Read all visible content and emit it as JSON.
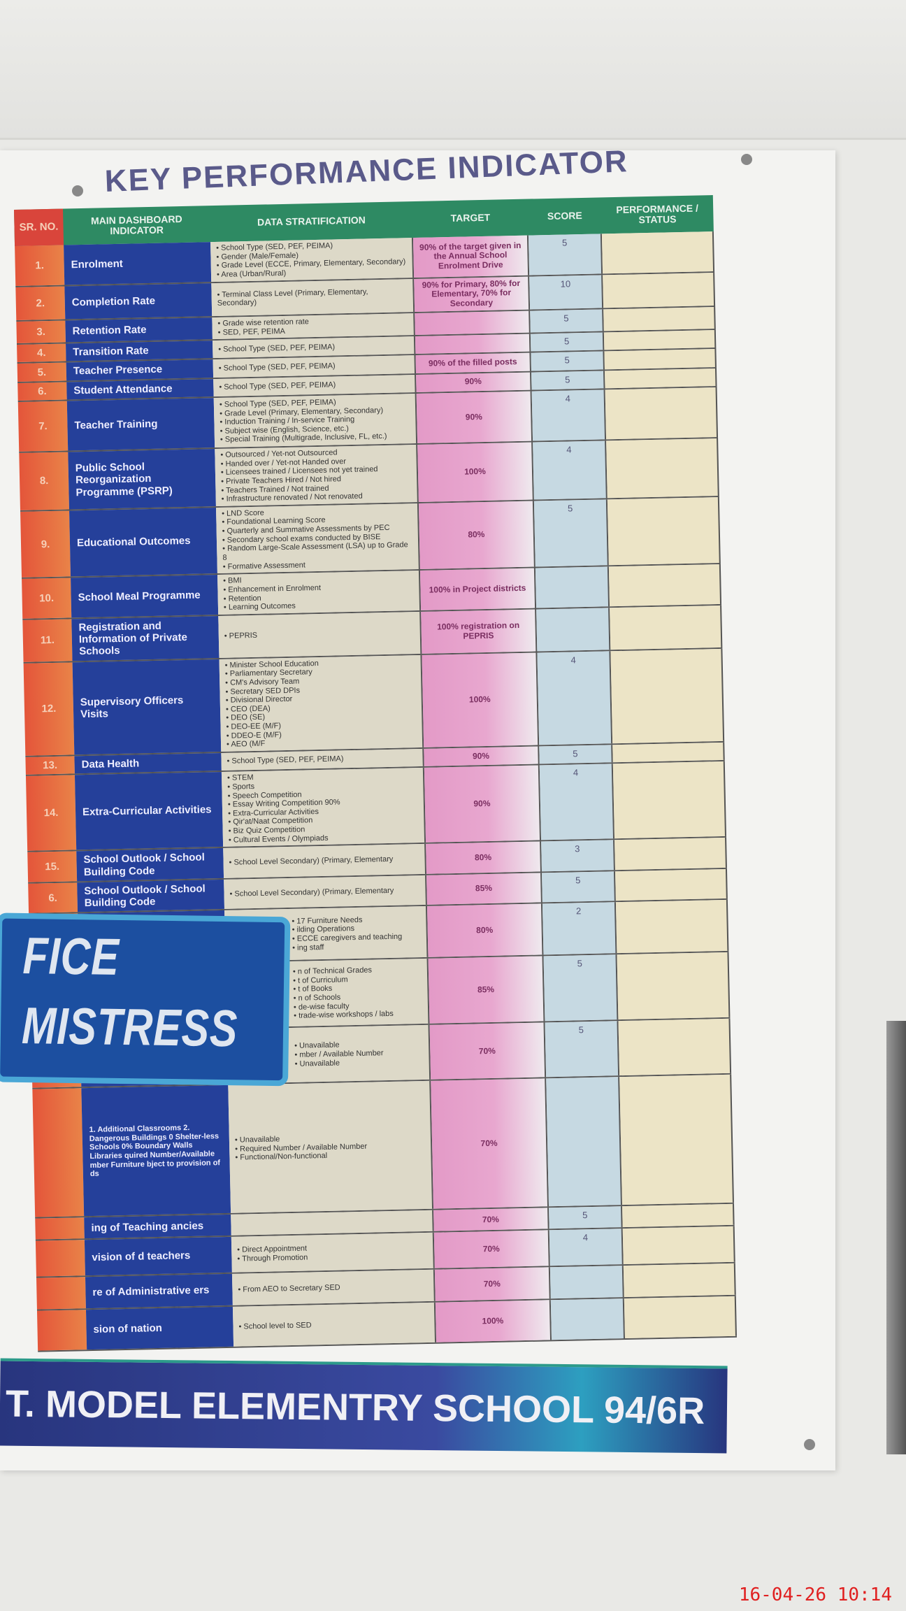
{
  "poster": {
    "title": "KEY PERFORMANCE INDICATOR",
    "footer": "T. MODEL ELEMENTRY SCHOOL 94/6R"
  },
  "headers": [
    "SR. NO.",
    "MAIN DASHBOARD INDICATOR",
    "DATA STRATIFICATION",
    "TARGET",
    "SCORE",
    "PERFORMANCE / STATUS"
  ],
  "rows": [
    {
      "sr": "1.",
      "indicator": "Enrolment",
      "strat": [
        "School Type (SED, PEF, PEIMA)",
        "Gender (Male/Female)",
        "Grade Level (ECCE, Primary, Elementary, Secondary)",
        "Area (Urban/Rural)"
      ],
      "target": "90% of the target given in the Annual School Enrolment Drive",
      "score": "5"
    },
    {
      "sr": "2.",
      "indicator": "Completion Rate",
      "strat": [
        "Terminal Class Level (Primary, Elementary, Secondary)"
      ],
      "target": "90% for Primary, 80% for Elementary, 70% for Secondary",
      "score": "10"
    },
    {
      "sr": "3.",
      "indicator": "Retention Rate",
      "strat": [
        "Grade wise retention rate",
        "SED, PEF, PEIMA"
      ],
      "target": "",
      "score": "5"
    },
    {
      "sr": "4.",
      "indicator": "Transition Rate",
      "strat": [
        "School Type (SED, PEF, PEIMA)"
      ],
      "target": "",
      "score": "5"
    },
    {
      "sr": "5.",
      "indicator": "Teacher Presence",
      "strat": [
        "School Type (SED, PEF, PEIMA)"
      ],
      "target": "90% of the filled posts",
      "score": "5"
    },
    {
      "sr": "6.",
      "indicator": "Student Attendance",
      "strat": [
        "School Type (SED, PEF, PEIMA)"
      ],
      "target": "90%",
      "score": "5"
    },
    {
      "sr": "7.",
      "indicator": "Teacher Training",
      "strat": [
        "School Type (SED, PEF, PEIMA)",
        "Grade Level (Primary, Elementary, Secondary)",
        "Induction Training / In-service Training",
        "Subject wise (English, Science, etc.)",
        "Special Training (Multigrade, Inclusive, FL, etc.)"
      ],
      "target": "90%",
      "score": "4"
    },
    {
      "sr": "8.",
      "indicator": "Public School Reorganization Programme (PSRP)",
      "strat": [
        "Outsourced / Yet-not Outsourced",
        "Handed over / Yet-not Handed over",
        "Licensees trained / Licensees not yet trained",
        "Private Teachers Hired / Not hired",
        "Teachers Trained / Not trained",
        "Infrastructure renovated / Not renovated"
      ],
      "target": "100%",
      "score": "4"
    },
    {
      "sr": "9.",
      "indicator": "Educational Outcomes",
      "strat": [
        "LND Score",
        "Foundational Learning Score",
        "Quarterly and Summative Assessments by PEC",
        "Secondary school exams conducted by BISE",
        "Random Large-Scale Assessment (LSA) up to Grade 8",
        "Formative Assessment"
      ],
      "target": "80%",
      "score": "5"
    },
    {
      "sr": "10.",
      "indicator": "School Meal Programme",
      "strat": [
        "BMI",
        "Enhancement in Enrolment",
        "Retention",
        "Learning Outcomes"
      ],
      "target": "100% in Project districts",
      "score": ""
    },
    {
      "sr": "11.",
      "indicator": "Registration and Information of Private Schools",
      "strat": [
        "PEPRIS"
      ],
      "target": "100% registration on PEPRIS",
      "score": ""
    },
    {
      "sr": "12.",
      "indicator": "Supervisory Officers Visits",
      "strat": [
        "Minister School Education",
        "Parliamentary Secretary",
        "CM's Advisory Team",
        "Secretary SED DPIs",
        "Divisional Director",
        "CEO (DEA)",
        "DEO (SE)",
        "DEO-EE (M/F)",
        "DDEO-E (M/F)",
        "AEO (M/F"
      ],
      "target": "100%",
      "score": "4"
    },
    {
      "sr": "13.",
      "indicator": "Data Health",
      "strat": [
        "School Type (SED, PEF, PEIMA)"
      ],
      "target": "90%",
      "score": "5"
    },
    {
      "sr": "14.",
      "indicator": "Extra-Curricular Activities",
      "strat": [
        "STEM",
        "Sports",
        "Speech Competition",
        "Essay Writing Competition 90%",
        "Extra-Curricular Activities",
        "Qir'at/Naat Competition",
        "Biz Quiz Competition",
        "Cultural Events / Olympiads"
      ],
      "target": "90%",
      "score": "4"
    },
    {
      "sr": "15.",
      "indicator": "School Outlook / School Building Code",
      "strat": [
        "School Level Secondary) (Primary, Elementary"
      ],
      "target": "80%",
      "score": "3"
    },
    {
      "sr": "6.",
      "indicator": "School Outlook / School Building Code",
      "strat": [
        "School Level Secondary) (Primary, Elementary"
      ],
      "target": "85%",
      "score": "5"
    },
    {
      "sr": "",
      "indicator": "",
      "strat": [
        "17 Furniture Needs",
        "ilding Operations",
        "ECCE caregivers and teaching",
        "ing staff"
      ],
      "target": "80%",
      "score": "2"
    },
    {
      "sr": "",
      "indicator": "",
      "strat": [
        "n of Technical Grades",
        "t of Curriculum",
        "t of Books",
        "n of Schools",
        "de-wise faculty",
        "trade-wise workshops / labs"
      ],
      "target": "85%",
      "score": "5"
    },
    {
      "sr": "",
      "indicator": "",
      "strat": [
        "Unavailable",
        "mber / Available Number",
        "Unavailable"
      ],
      "target": "70%",
      "score": "5"
    },
    {
      "sr": "",
      "indicator": "1. Additional Classrooms 2. Dangerous Buildings 0 Shelter-less Schools 0% Boundary Walls Libraries quired Number/Available mber Furniture bject to provision of ds",
      "strat": [
        "Unavailable",
        "Required Number / Available Number",
        "Functional/Non-functional"
      ],
      "target": "70%",
      "score": ""
    },
    {
      "sr": "",
      "indicator": "ing of Teaching ancies",
      "strat": [],
      "target": "70%",
      "score": "5"
    },
    {
      "sr": "",
      "indicator": "vision of d teachers",
      "strat": [
        "Direct Appointment",
        "Through Promotion"
      ],
      "target": "70%",
      "score": "4"
    },
    {
      "sr": "",
      "indicator": "re of Administrative ers",
      "strat": [
        "From AEO to Secretary SED"
      ],
      "target": "70%",
      "score": ""
    },
    {
      "sr": "",
      "indicator": "sion of nation",
      "strat": [
        "School level to SED"
      ],
      "target": "100%",
      "score": ""
    }
  ],
  "sign": {
    "line1": "FICE",
    "line2": "MISTRESS"
  },
  "timestamp": "16-04-26  10:14"
}
